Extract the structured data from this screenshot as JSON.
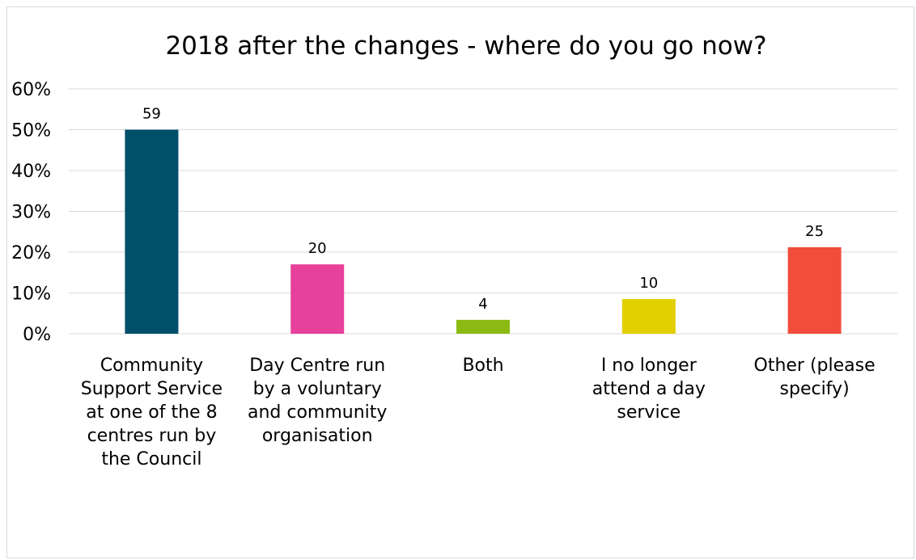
{
  "chart_data": {
    "type": "bar",
    "title": "2018 after the changes - where do you go now?",
    "xlabel": "",
    "ylabel": "",
    "ylim": [
      0,
      0.6
    ],
    "ytick_labels": [
      "0%",
      "10%",
      "20%",
      "30%",
      "40%",
      "50%",
      "60%"
    ],
    "grid": true,
    "legend": "none",
    "categories": [
      "Community Support Service at one of the 8 centres run by the Council",
      "Day Centre run by a voluntary and community organisation",
      "Both",
      "I no longer attend a day service",
      "Other (please specify)"
    ],
    "category_lines": [
      [
        "Community",
        "Support Service",
        "at one of the 8",
        "centres run by",
        "the Council"
      ],
      [
        "Day Centre run",
        "by a voluntary",
        "and community",
        "organisation"
      ],
      [
        "Both"
      ],
      [
        "I no longer",
        "attend a day",
        "service"
      ],
      [
        "Other (please",
        "specify)"
      ]
    ],
    "values": [
      0.5,
      0.17,
      0.034,
      0.085,
      0.212
    ],
    "data_labels": [
      "59",
      "20",
      "4",
      "10",
      "25"
    ],
    "colors": [
      "#004f6b",
      "#e8419b",
      "#8cba13",
      "#e2cf00",
      "#f24c3a"
    ],
    "gridline_color": "#d9d9d9"
  }
}
